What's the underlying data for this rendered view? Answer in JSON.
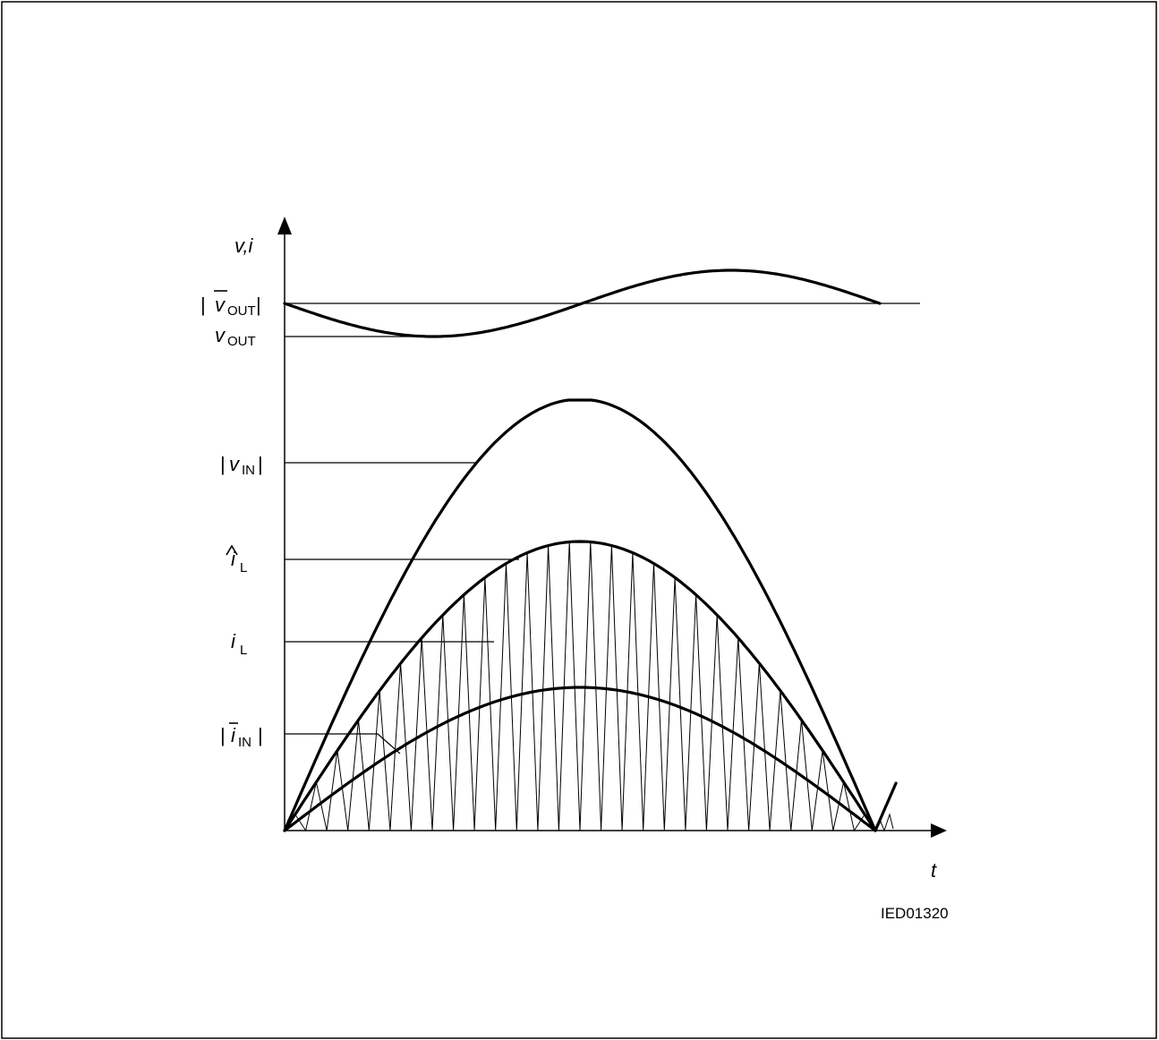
{
  "diagram": {
    "y_axis_label": "v,i",
    "x_axis_label": "t",
    "drawing_code": "IED01320",
    "labels": {
      "vout_avg": {
        "symbol": "v",
        "subscript": "OUT",
        "overline": true,
        "abs": true
      },
      "vout": {
        "symbol": "v",
        "subscript": "OUT"
      },
      "vin_abs": {
        "symbol": "v",
        "subscript": "IN",
        "abs": true
      },
      "il_peak": {
        "symbol": "i",
        "subscript": "L",
        "hat": true
      },
      "il": {
        "symbol": "i",
        "subscript": "L"
      },
      "iin_avg": {
        "symbol": "i",
        "subscript": "IN",
        "overline": true,
        "abs": true
      }
    },
    "glyphs": {
      "bar": "|",
      "hat": "^",
      "overline": "‾"
    },
    "triangle_wave_teeth": 28
  }
}
